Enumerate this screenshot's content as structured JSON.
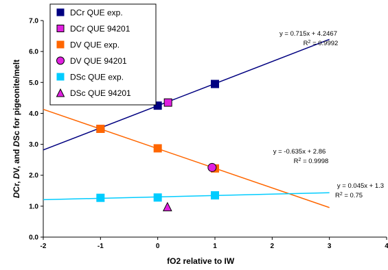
{
  "chart_data": {
    "type": "scatter",
    "xlabel": "fO2 relative to IW",
    "ylabel": "DCr, DV, and DSc for pigeonite/melt",
    "xlim": [
      -2,
      4
    ],
    "ylim": [
      0,
      7
    ],
    "xticks": [
      "-2",
      "-1",
      "0",
      "1",
      "2",
      "3",
      "4"
    ],
    "yticks": [
      "0.0",
      "1.0",
      "2.0",
      "3.0",
      "4.0",
      "5.0",
      "6.0",
      "7.0"
    ],
    "grid": false,
    "legend_position": "top-left",
    "series": [
      {
        "name": "DCr QUE exp.",
        "marker": "square",
        "color": "#000080",
        "outline": "#000080",
        "points": [
          [
            -1,
            3.5
          ],
          [
            0,
            4.25
          ],
          [
            1,
            4.95
          ]
        ]
      },
      {
        "name": "DCr QUE 94201",
        "marker": "square",
        "color": "#e020e0",
        "outline": "#000000",
        "points": [
          [
            0.18,
            4.35
          ]
        ]
      },
      {
        "name": "DV QUE exp.",
        "marker": "square",
        "color": "#ff6600",
        "outline": "#ff6600",
        "points": [
          [
            -1,
            3.5
          ],
          [
            0,
            2.87
          ],
          [
            1,
            2.22
          ]
        ]
      },
      {
        "name": "DV QUE 94201",
        "marker": "circle",
        "color": "#e020e0",
        "outline": "#000000",
        "points": [
          [
            0.95,
            2.25
          ]
        ]
      },
      {
        "name": "DSc QUE exp.",
        "marker": "square",
        "color": "#00ccff",
        "outline": "#00ccff",
        "points": [
          [
            -1,
            1.27
          ],
          [
            0,
            1.28
          ],
          [
            1,
            1.35
          ]
        ]
      },
      {
        "name": "DSc QUE 94201",
        "marker": "triangle",
        "color": "#e020e0",
        "outline": "#000000",
        "points": [
          [
            0.17,
            0.98
          ]
        ]
      }
    ],
    "trendlines": [
      {
        "color": "#000080",
        "slope": 0.715,
        "intercept": 4.2467,
        "x_range": [
          -2,
          3
        ],
        "equation": "y = 0.715x + 4.2467",
        "r2_prefix": "R",
        "r2_sup": "2",
        "r2_value": " = 0.9992"
      },
      {
        "color": "#ff6600",
        "slope": -0.635,
        "intercept": 2.86,
        "x_range": [
          -2,
          3
        ],
        "equation": "y = -0.635x + 2.86",
        "r2_prefix": "R",
        "r2_sup": "2",
        "r2_value": " = 0.9998"
      },
      {
        "color": "#00ccff",
        "slope": 0.045,
        "intercept": 1.3,
        "x_range": [
          -2,
          3
        ],
        "equation": "y = 0.045x + 1.3",
        "r2_prefix": "R",
        "r2_sup": "2",
        "r2_value": " = 0.75"
      }
    ]
  }
}
